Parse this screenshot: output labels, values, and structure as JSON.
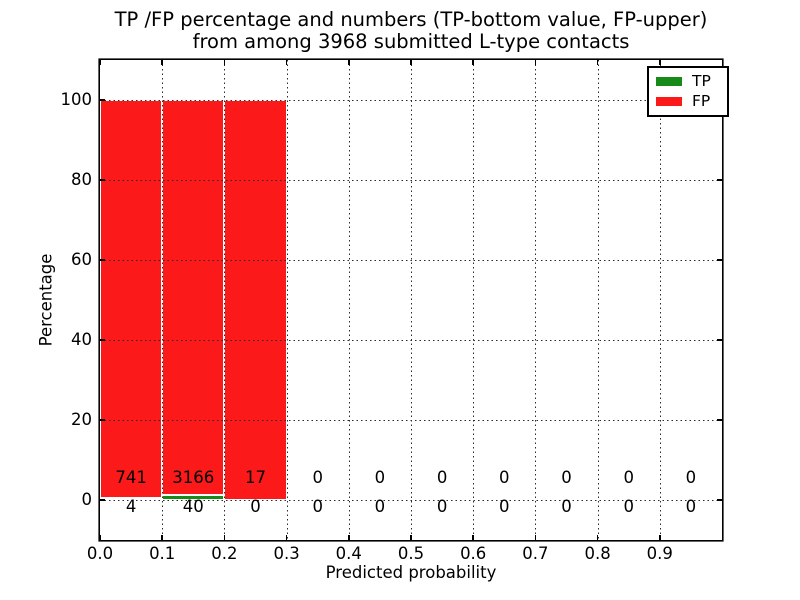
{
  "chart_data": {
    "type": "bar",
    "stacked": true,
    "title_line1": "TP /FP percentage and numbers (TP-bottom value, FP-upper)",
    "title_line2": "from among 3968 submitted L-type contacts",
    "xlabel": "Predicted probability",
    "ylabel": "Percentage",
    "xlim": [
      0.0,
      1.0
    ],
    "ylim": [
      -10,
      110
    ],
    "grid": {
      "style": "dotted",
      "x": true,
      "y": true
    },
    "legend_position": "upper right",
    "total_contacts": 3968,
    "bin_width": 0.1,
    "x_ticks": [
      {
        "value": 0.0,
        "label": "0.0"
      },
      {
        "value": 0.1,
        "label": "0.1"
      },
      {
        "value": 0.2,
        "label": "0.2"
      },
      {
        "value": 0.3,
        "label": "0.3"
      },
      {
        "value": 0.4,
        "label": "0.4"
      },
      {
        "value": 0.5,
        "label": "0.5"
      },
      {
        "value": 0.6,
        "label": "0.6"
      },
      {
        "value": 0.7,
        "label": "0.7"
      },
      {
        "value": 0.8,
        "label": "0.8"
      },
      {
        "value": 0.9,
        "label": "0.9"
      }
    ],
    "y_ticks": [
      {
        "value": 0,
        "label": "0"
      },
      {
        "value": 20,
        "label": "20"
      },
      {
        "value": 40,
        "label": "40"
      },
      {
        "value": 60,
        "label": "60"
      },
      {
        "value": 80,
        "label": "80"
      },
      {
        "value": 100,
        "label": "100"
      }
    ],
    "bins": [
      {
        "x0": 0.0,
        "x1": 0.1,
        "tp": 4,
        "fp": 741
      },
      {
        "x0": 0.1,
        "x1": 0.2,
        "tp": 40,
        "fp": 3166
      },
      {
        "x0": 0.2,
        "x1": 0.3,
        "tp": 0,
        "fp": 17
      },
      {
        "x0": 0.3,
        "x1": 0.4,
        "tp": 0,
        "fp": 0
      },
      {
        "x0": 0.4,
        "x1": 0.5,
        "tp": 0,
        "fp": 0
      },
      {
        "x0": 0.5,
        "x1": 0.6,
        "tp": 0,
        "fp": 0
      },
      {
        "x0": 0.6,
        "x1": 0.7,
        "tp": 0,
        "fp": 0
      },
      {
        "x0": 0.7,
        "x1": 0.8,
        "tp": 0,
        "fp": 0
      },
      {
        "x0": 0.8,
        "x1": 0.9,
        "tp": 0,
        "fp": 0
      },
      {
        "x0": 0.9,
        "x1": 1.0,
        "tp": 0,
        "fp": 0
      }
    ],
    "series": [
      {
        "name": "TP",
        "color": "#178a17",
        "position": "bottom"
      },
      {
        "name": "FP",
        "color": "#fb1919",
        "position": "upper"
      }
    ]
  }
}
